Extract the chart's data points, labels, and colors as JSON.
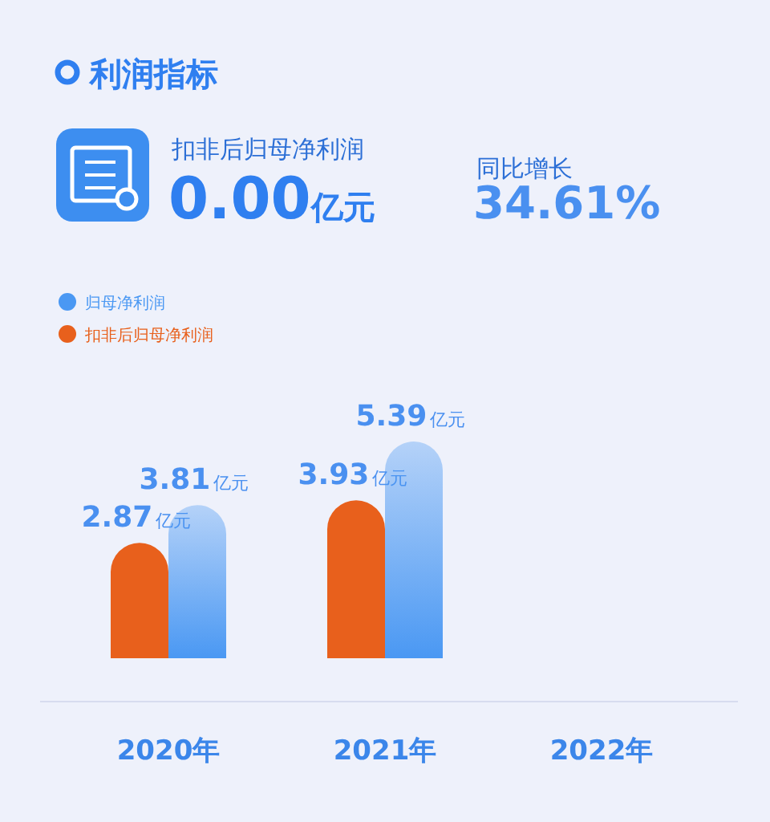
{
  "chart_data": [
    {
      "type": "other",
      "title": "利润指标",
      "annotations": [
        "扣非后归母净利润",
        "0.00亿元",
        "同比增长",
        "34.61%"
      ]
    },
    {
      "type": "bar",
      "categories": [
        "2020年",
        "2021年",
        "2022年"
      ],
      "series": [
        {
          "name": "扣非后归母净利润",
          "color": "#e8601c",
          "values": [
            2.87,
            3.93,
            null
          ],
          "value_labels": [
            "2.87亿元",
            "3.93亿元",
            null
          ]
        },
        {
          "name": "归母净利润",
          "color": "#4a98f3",
          "values": [
            3.81,
            5.39,
            null
          ],
          "value_labels": [
            "3.81亿元",
            "5.39亿元",
            null
          ]
        }
      ],
      "legend": "top left"
    }
  ]
}
